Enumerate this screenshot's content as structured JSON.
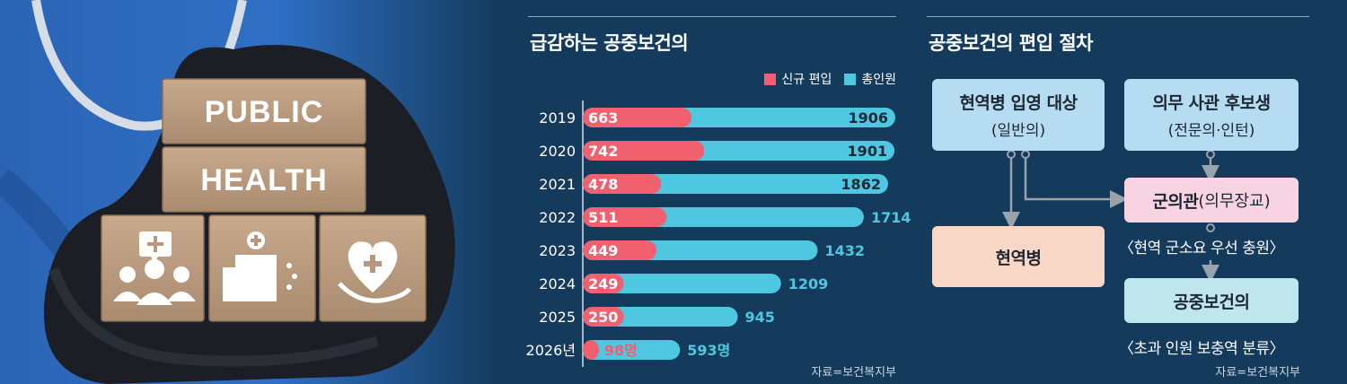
{
  "photo": {
    "block_top": "PUBLIC",
    "block_bottom": "HEALTH",
    "icons": [
      "medical-team-icon",
      "hospital-building-icon",
      "heart-hand-icon"
    ]
  },
  "chart": {
    "title": "급감하는 공중보건의",
    "source": "자료=보건복지부"
  },
  "chart_data": {
    "type": "bar",
    "orientation": "horizontal",
    "categories": [
      "2019",
      "2020",
      "2021",
      "2022",
      "2023",
      "2024",
      "2025",
      "2026년"
    ],
    "series": [
      {
        "name": "신규 편입",
        "color": "#f0606e",
        "values": [
          663,
          742,
          478,
          511,
          449,
          249,
          250,
          98
        ],
        "labels": [
          "663",
          "742",
          "478",
          "511",
          "449",
          "249",
          "250",
          "98명"
        ]
      },
      {
        "name": "총인원",
        "color": "#4fc7e0",
        "values": [
          1906,
          1901,
          1862,
          1714,
          1432,
          1209,
          945,
          593
        ],
        "labels": [
          "1906",
          "1901",
          "1862",
          "1714",
          "1432",
          "1209",
          "945",
          "593명"
        ]
      }
    ],
    "overlaid": true,
    "xlim": [
      0,
      1906
    ],
    "legend": "top-right",
    "grid": false
  },
  "flow": {
    "title": "공중보건의 편입 절차",
    "source": "자료=보건복지부",
    "boxes": {
      "active": {
        "main": "현역병 입영 대상",
        "sub": "(일반의)"
      },
      "officer_candidate": {
        "main": "의무 사관 후보생",
        "sub": "(전문의·인턴)"
      },
      "medical_officer": {
        "main": "군의관",
        "sub": "(의무장교)"
      },
      "soldier": {
        "main": "현역병"
      },
      "phd": {
        "main": "공중보건의"
      }
    },
    "notes": {
      "after_officer": "〈현역 군소요 우선 충원〉",
      "after_phd": "〈초과 인원 보충역 분류〉"
    },
    "colors": {
      "blue_box": "#b6dcf2",
      "pink_box": "#f8d4e3",
      "peach_box": "#f8d7c7",
      "aqua_box": "#bfe6ec",
      "arrow": "#9aa3ab"
    }
  }
}
